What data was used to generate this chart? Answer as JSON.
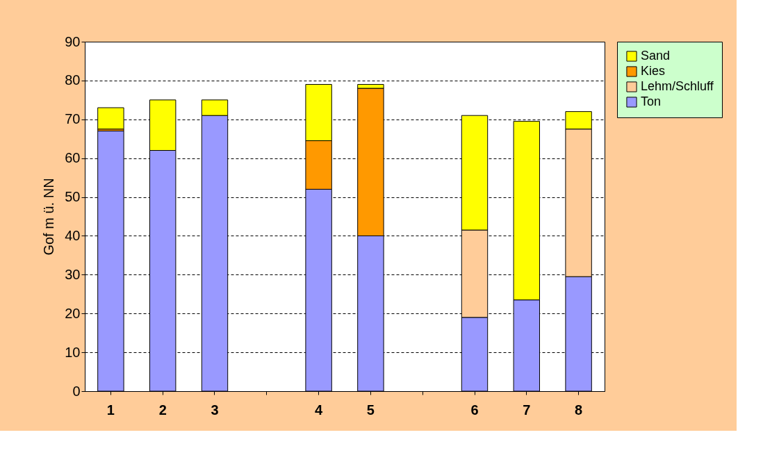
{
  "chart_data": {
    "type": "bar",
    "stacked": true,
    "ylabel": "Gof m ü. NN",
    "categories": [
      "1",
      "2",
      "3",
      null,
      "4",
      "5",
      null,
      "6",
      "7",
      "8"
    ],
    "series": [
      {
        "name": "Ton",
        "color": "#9999ff",
        "values": [
          67,
          62,
          71,
          null,
          52,
          40,
          null,
          19,
          23.5,
          29.5
        ]
      },
      {
        "name": "Lehm/Schluff",
        "color": "#ffcc99",
        "values": [
          null,
          null,
          null,
          null,
          null,
          null,
          null,
          22.5,
          null,
          38
        ]
      },
      {
        "name": "Kies",
        "color": "#ff9900",
        "values": [
          0.5,
          null,
          null,
          null,
          12.5,
          38,
          null,
          null,
          null,
          null
        ]
      },
      {
        "name": "Sand",
        "color": "#ffff00",
        "values": [
          5.5,
          13,
          4,
          null,
          14.5,
          1,
          null,
          29.5,
          46,
          4.5
        ]
      }
    ],
    "ylim": [
      0,
      90
    ],
    "yticks": [
      0,
      10,
      20,
      30,
      40,
      50,
      60,
      70,
      80,
      90
    ],
    "grid": "y",
    "legend": "right"
  }
}
